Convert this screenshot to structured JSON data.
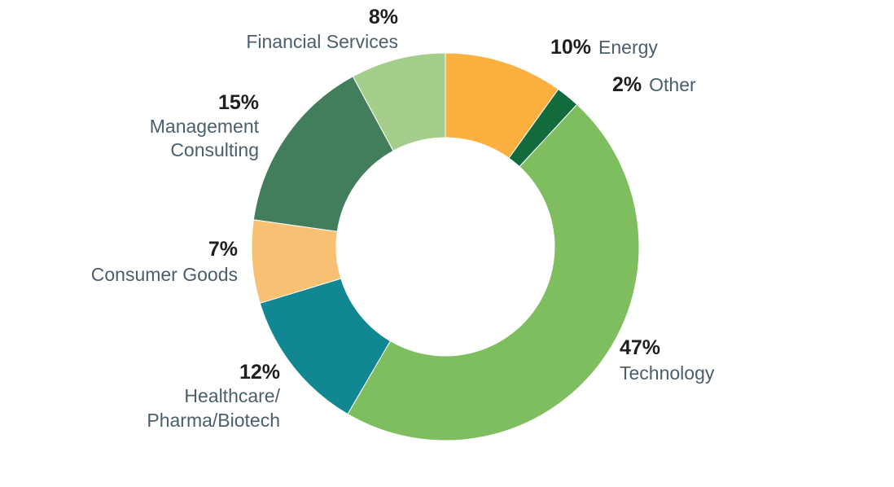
{
  "chart_data": {
    "type": "pie",
    "variant": "donut",
    "start": "top",
    "direction": "clockwise",
    "slices": [
      {
        "name": "Energy",
        "label_lines": [
          "Energy"
        ],
        "value": 10,
        "pct_label": "10%",
        "color": "#FBB040"
      },
      {
        "name": "Other",
        "label_lines": [
          "Other"
        ],
        "value": 2,
        "pct_label": "2%",
        "color": "#116B3C"
      },
      {
        "name": "Technology",
        "label_lines": [
          "Technology"
        ],
        "value": 47,
        "pct_label": "47%",
        "color": "#7FBE5F"
      },
      {
        "name": "Healthcare/ Pharma/Biotech",
        "label_lines": [
          "Healthcare/",
          "Pharma/Biotech"
        ],
        "value": 12,
        "pct_label": "12%",
        "color": "#108791"
      },
      {
        "name": "Consumer Goods",
        "label_lines": [
          "Consumer Goods"
        ],
        "value": 7,
        "pct_label": "7%",
        "color": "#F7C072"
      },
      {
        "name": "Management Consulting",
        "label_lines": [
          "Management",
          "Consulting"
        ],
        "value": 15,
        "pct_label": "15%",
        "color": "#427D5C"
      },
      {
        "name": "Financial Services",
        "label_lines": [
          "Financial Services"
        ],
        "value": 8,
        "pct_label": "8%",
        "color": "#A5CD8C"
      }
    ]
  }
}
